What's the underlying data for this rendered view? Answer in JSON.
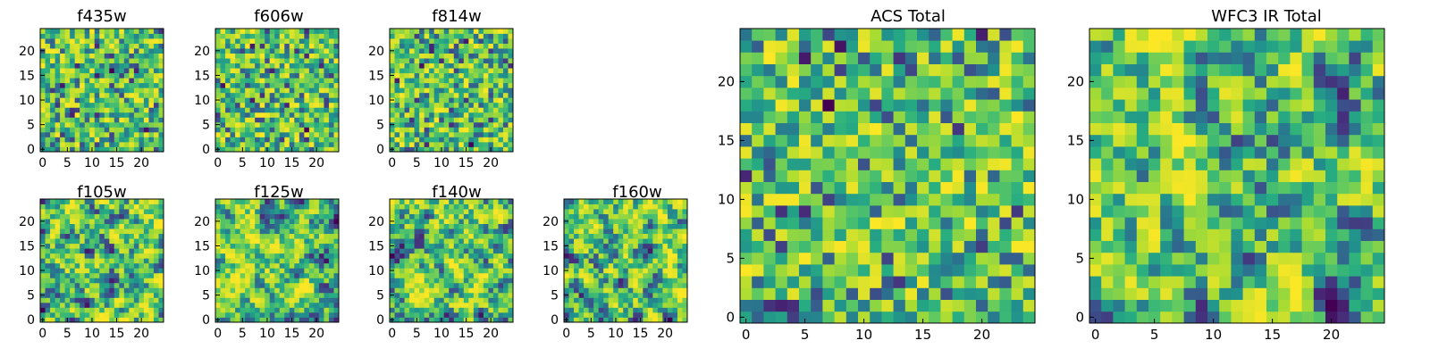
{
  "chart_data": [
    {
      "id": "f435w",
      "type": "heatmap",
      "title": "f435w",
      "grid_size": 25,
      "x_ticks": [
        0,
        5,
        10,
        15,
        20
      ],
      "y_ticks": [
        0,
        5,
        10,
        15,
        20
      ],
      "xlim": [
        0,
        25
      ],
      "ylim": [
        0,
        25
      ],
      "colormap": "viridis",
      "texture": "noisy",
      "seed": 11
    },
    {
      "id": "f606w",
      "type": "heatmap",
      "title": "f606w",
      "grid_size": 25,
      "x_ticks": [
        0,
        5,
        10,
        15,
        20
      ],
      "y_ticks": [
        0,
        5,
        10,
        15,
        20
      ],
      "xlim": [
        0,
        25
      ],
      "ylim": [
        0,
        25
      ],
      "colormap": "viridis",
      "texture": "noisy",
      "seed": 23
    },
    {
      "id": "f814w",
      "type": "heatmap",
      "title": "f814w",
      "grid_size": 25,
      "x_ticks": [
        0,
        5,
        10,
        15,
        20
      ],
      "y_ticks": [
        0,
        5,
        10,
        15,
        20
      ],
      "xlim": [
        0,
        25
      ],
      "ylim": [
        0,
        25
      ],
      "colormap": "viridis",
      "texture": "noisy",
      "seed": 37
    },
    {
      "id": "f105w",
      "type": "heatmap",
      "title": "f105w",
      "grid_size": 25,
      "x_ticks": [
        0,
        5,
        10,
        15,
        20
      ],
      "y_ticks": [
        0,
        5,
        10,
        15,
        20
      ],
      "xlim": [
        0,
        25
      ],
      "ylim": [
        0,
        25
      ],
      "colormap": "viridis",
      "texture": "smooth",
      "seed": 41
    },
    {
      "id": "f125w",
      "type": "heatmap",
      "title": "f125w",
      "grid_size": 25,
      "x_ticks": [
        0,
        5,
        10,
        15,
        20
      ],
      "y_ticks": [
        0,
        5,
        10,
        15,
        20
      ],
      "xlim": [
        0,
        25
      ],
      "ylim": [
        0,
        25
      ],
      "colormap": "viridis",
      "texture": "smooth",
      "seed": 53
    },
    {
      "id": "f140w",
      "type": "heatmap",
      "title": "f140w",
      "grid_size": 25,
      "x_ticks": [
        0,
        5,
        10,
        15,
        20
      ],
      "y_ticks": [
        0,
        5,
        10,
        15,
        20
      ],
      "xlim": [
        0,
        25
      ],
      "ylim": [
        0,
        25
      ],
      "colormap": "viridis",
      "texture": "smooth",
      "seed": 67
    },
    {
      "id": "f160w",
      "type": "heatmap",
      "title": "f160w",
      "grid_size": 25,
      "x_ticks": [
        0,
        5,
        10,
        15,
        20
      ],
      "y_ticks": [
        0,
        5,
        10,
        15,
        20
      ],
      "xlim": [
        0,
        25
      ],
      "ylim": [
        0,
        25
      ],
      "colormap": "viridis",
      "texture": "smooth",
      "seed": 79
    },
    {
      "id": "acs-total",
      "type": "heatmap",
      "title": "ACS Total",
      "grid_size": 25,
      "x_ticks": [
        0,
        5,
        10,
        15,
        20
      ],
      "y_ticks": [
        0,
        5,
        10,
        15,
        20
      ],
      "xlim": [
        0,
        25
      ],
      "ylim": [
        0,
        25
      ],
      "colormap": "viridis",
      "texture": "noisy",
      "seed": 97
    },
    {
      "id": "wfc3-ir-total",
      "type": "heatmap",
      "title": "WFC3 IR Total",
      "grid_size": 25,
      "x_ticks": [
        0,
        5,
        10,
        15,
        20
      ],
      "y_ticks": [
        0,
        5,
        10,
        15,
        20
      ],
      "xlim": [
        0,
        25
      ],
      "ylim": [
        0,
        25
      ],
      "colormap": "viridis",
      "texture": "smooth",
      "seed": 131
    }
  ]
}
